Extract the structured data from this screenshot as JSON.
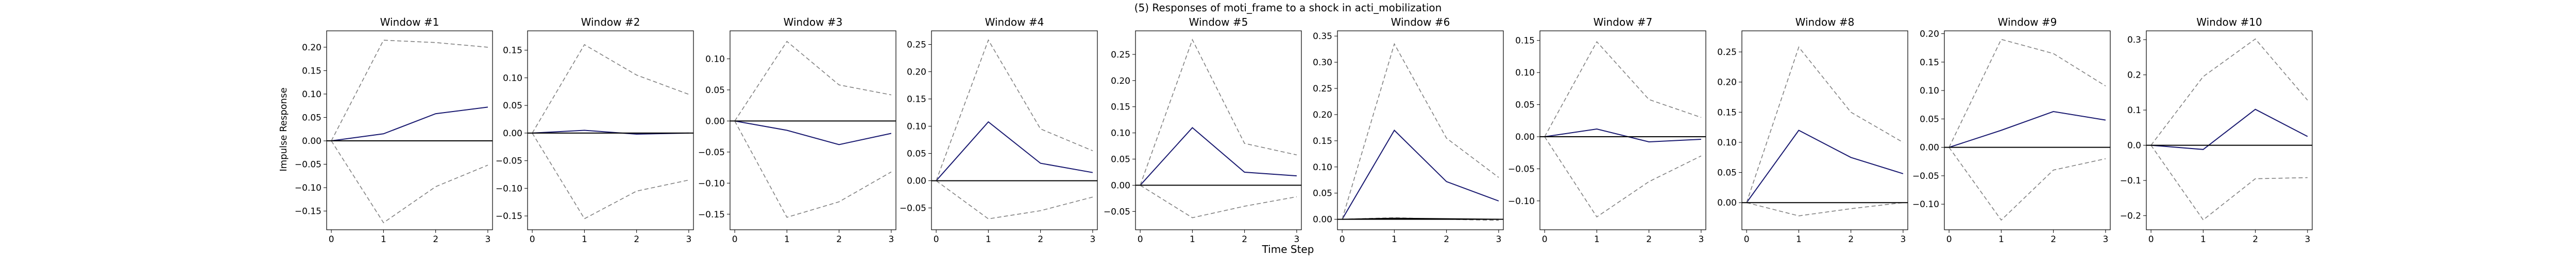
{
  "figure": {
    "title": "(5) Responses of moti_frame to a shock in acti_mobilization",
    "xlabel": "Time Step",
    "ylabel": "Impulse Response"
  },
  "colors": {
    "response_line": "#191970",
    "band_line": "#808080",
    "zero_line": "#000000"
  },
  "chart_data": [
    {
      "type": "line",
      "title": "Window #1",
      "x": [
        0,
        1,
        2,
        3
      ],
      "ylim": [
        -0.19,
        0.235
      ],
      "yticks": [
        -0.15,
        -0.1,
        -0.05,
        0.0,
        0.05,
        0.1,
        0.15,
        0.2
      ],
      "ytick_labels": [
        "−0.15",
        "−0.10",
        "−0.05",
        "0.00",
        "0.05",
        "0.10",
        "0.15",
        "0.20"
      ],
      "series": [
        {
          "role": "response",
          "style": "solid",
          "values": [
            0.0,
            0.015,
            0.058,
            0.072
          ]
        },
        {
          "role": "upper",
          "style": "dashed",
          "values": [
            0.0,
            0.215,
            0.21,
            0.2
          ]
        },
        {
          "role": "lower",
          "style": "dashed",
          "values": [
            0.0,
            -0.175,
            -0.098,
            -0.052
          ]
        }
      ]
    },
    {
      "type": "line",
      "title": "Window #2",
      "x": [
        0,
        1,
        2,
        3
      ],
      "ylim": [
        -0.175,
        0.185
      ],
      "yticks": [
        -0.15,
        -0.1,
        -0.05,
        0.0,
        0.05,
        0.1,
        0.15
      ],
      "ytick_labels": [
        "−0.15",
        "−0.10",
        "−0.05",
        "0.00",
        "0.05",
        "0.10",
        "0.15"
      ],
      "series": [
        {
          "role": "response",
          "style": "solid",
          "values": [
            0.0,
            0.005,
            -0.002,
            0.0
          ]
        },
        {
          "role": "upper",
          "style": "dashed",
          "values": [
            0.0,
            0.16,
            0.105,
            0.07
          ]
        },
        {
          "role": "lower",
          "style": "dashed",
          "values": [
            0.0,
            -0.155,
            -0.105,
            -0.085
          ]
        }
      ]
    },
    {
      "type": "line",
      "title": "Window #3",
      "x": [
        0,
        1,
        2,
        3
      ],
      "ylim": [
        -0.175,
        0.145
      ],
      "yticks": [
        -0.15,
        -0.1,
        -0.05,
        0.0,
        0.05,
        0.1
      ],
      "ytick_labels": [
        "−0.15",
        "−0.10",
        "−0.05",
        "0.00",
        "0.05",
        "0.10"
      ],
      "series": [
        {
          "role": "response",
          "style": "solid",
          "values": [
            0.0,
            -0.015,
            -0.038,
            -0.02
          ]
        },
        {
          "role": "upper",
          "style": "dashed",
          "values": [
            0.0,
            0.128,
            0.058,
            0.042
          ]
        },
        {
          "role": "lower",
          "style": "dashed",
          "values": [
            0.0,
            -0.155,
            -0.13,
            -0.082
          ]
        }
      ]
    },
    {
      "type": "line",
      "title": "Window #4",
      "x": [
        0,
        1,
        2,
        3
      ],
      "ylim": [
        -0.09,
        0.275
      ],
      "yticks": [
        -0.05,
        0.0,
        0.05,
        0.1,
        0.15,
        0.2,
        0.25
      ],
      "ytick_labels": [
        "−0.05",
        "0.00",
        "0.05",
        "0.10",
        "0.15",
        "0.20",
        "0.25"
      ],
      "series": [
        {
          "role": "response",
          "style": "solid",
          "values": [
            0.0,
            0.108,
            0.032,
            0.015
          ]
        },
        {
          "role": "upper",
          "style": "dashed",
          "values": [
            0.0,
            0.258,
            0.095,
            0.055
          ]
        },
        {
          "role": "lower",
          "style": "dashed",
          "values": [
            0.0,
            -0.07,
            -0.055,
            -0.03
          ]
        }
      ]
    },
    {
      "type": "line",
      "title": "Window #5",
      "x": [
        0,
        1,
        2,
        3
      ],
      "ylim": [
        -0.085,
        0.295
      ],
      "yticks": [
        -0.05,
        0.0,
        0.05,
        0.1,
        0.15,
        0.2,
        0.25
      ],
      "ytick_labels": [
        "−0.05",
        "0.00",
        "0.05",
        "0.10",
        "0.15",
        "0.20",
        "0.25"
      ],
      "series": [
        {
          "role": "response",
          "style": "solid",
          "values": [
            0.0,
            0.11,
            0.025,
            0.018
          ]
        },
        {
          "role": "upper",
          "style": "dashed",
          "values": [
            0.0,
            0.278,
            0.08,
            0.058
          ]
        },
        {
          "role": "lower",
          "style": "dashed",
          "values": [
            0.0,
            -0.062,
            -0.04,
            -0.022
          ]
        }
      ]
    },
    {
      "type": "line",
      "title": "Window #6",
      "x": [
        0,
        1,
        2,
        3
      ],
      "ylim": [
        -0.02,
        0.36
      ],
      "yticks": [
        0.0,
        0.05,
        0.1,
        0.15,
        0.2,
        0.25,
        0.3,
        0.35
      ],
      "ytick_labels": [
        "0.00",
        "0.05",
        "0.10",
        "0.15",
        "0.20",
        "0.25",
        "0.30",
        "0.35"
      ],
      "series": [
        {
          "role": "response",
          "style": "solid",
          "values": [
            0.0,
            0.17,
            0.072,
            0.035
          ]
        },
        {
          "role": "upper",
          "style": "dashed",
          "values": [
            0.0,
            0.335,
            0.155,
            0.08
          ]
        },
        {
          "role": "lower",
          "style": "dashed",
          "values": [
            0.0,
            0.003,
            0.0,
            -0.002
          ]
        },
        {
          "role": "zero",
          "style": "solid",
          "values": [
            0.0,
            0.002,
            0.001,
            0.0
          ]
        }
      ]
    },
    {
      "type": "line",
      "title": "Window #7",
      "x": [
        0,
        1,
        2,
        3
      ],
      "ylim": [
        -0.145,
        0.165
      ],
      "yticks": [
        -0.1,
        -0.05,
        0.0,
        0.05,
        0.1,
        0.15
      ],
      "ytick_labels": [
        "−0.10",
        "−0.05",
        "0.00",
        "0.05",
        "0.10",
        "0.15"
      ],
      "series": [
        {
          "role": "response",
          "style": "solid",
          "values": [
            0.0,
            0.012,
            -0.008,
            -0.004
          ]
        },
        {
          "role": "upper",
          "style": "dashed",
          "values": [
            0.0,
            0.148,
            0.058,
            0.03
          ]
        },
        {
          "role": "lower",
          "style": "dashed",
          "values": [
            0.0,
            -0.125,
            -0.07,
            -0.03
          ]
        }
      ]
    },
    {
      "type": "line",
      "title": "Window #8",
      "x": [
        0,
        1,
        2,
        3
      ],
      "ylim": [
        -0.045,
        0.285
      ],
      "yticks": [
        0.0,
        0.05,
        0.1,
        0.15,
        0.2,
        0.25
      ],
      "ytick_labels": [
        "0.00",
        "0.05",
        "0.10",
        "0.15",
        "0.20",
        "0.25"
      ],
      "series": [
        {
          "role": "response",
          "style": "solid",
          "values": [
            0.0,
            0.12,
            0.075,
            0.048
          ]
        },
        {
          "role": "upper",
          "style": "dashed",
          "values": [
            0.0,
            0.258,
            0.15,
            0.1
          ]
        },
        {
          "role": "lower",
          "style": "dashed",
          "values": [
            0.0,
            -0.022,
            -0.01,
            0.0
          ]
        }
      ]
    },
    {
      "type": "line",
      "title": "Window #9",
      "x": [
        0,
        1,
        2,
        3
      ],
      "ylim": [
        -0.145,
        0.205
      ],
      "yticks": [
        -0.1,
        -0.05,
        0.0,
        0.05,
        0.1,
        0.15,
        0.2
      ],
      "ytick_labels": [
        "−0.10",
        "−0.05",
        "0.00",
        "0.05",
        "0.10",
        "0.15",
        "0.20"
      ],
      "series": [
        {
          "role": "response",
          "style": "solid",
          "values": [
            0.0,
            0.03,
            0.063,
            0.048
          ]
        },
        {
          "role": "upper",
          "style": "dashed",
          "values": [
            0.0,
            0.19,
            0.165,
            0.108
          ]
        },
        {
          "role": "lower",
          "style": "dashed",
          "values": [
            0.0,
            -0.128,
            -0.04,
            -0.02
          ]
        }
      ]
    },
    {
      "type": "line",
      "title": "Window #10",
      "x": [
        0,
        1,
        2,
        3
      ],
      "ylim": [
        -0.24,
        0.325
      ],
      "yticks": [
        -0.2,
        -0.1,
        0.0,
        0.1,
        0.2,
        0.3
      ],
      "ytick_labels": [
        "−0.2",
        "−0.1",
        "0.0",
        "0.1",
        "0.2",
        "0.3"
      ],
      "series": [
        {
          "role": "response",
          "style": "solid",
          "values": [
            0.0,
            -0.012,
            0.102,
            0.025
          ]
        },
        {
          "role": "upper",
          "style": "dashed",
          "values": [
            0.0,
            0.195,
            0.302,
            0.128
          ]
        },
        {
          "role": "lower",
          "style": "dashed",
          "values": [
            0.0,
            -0.212,
            -0.095,
            -0.092
          ]
        }
      ]
    }
  ]
}
